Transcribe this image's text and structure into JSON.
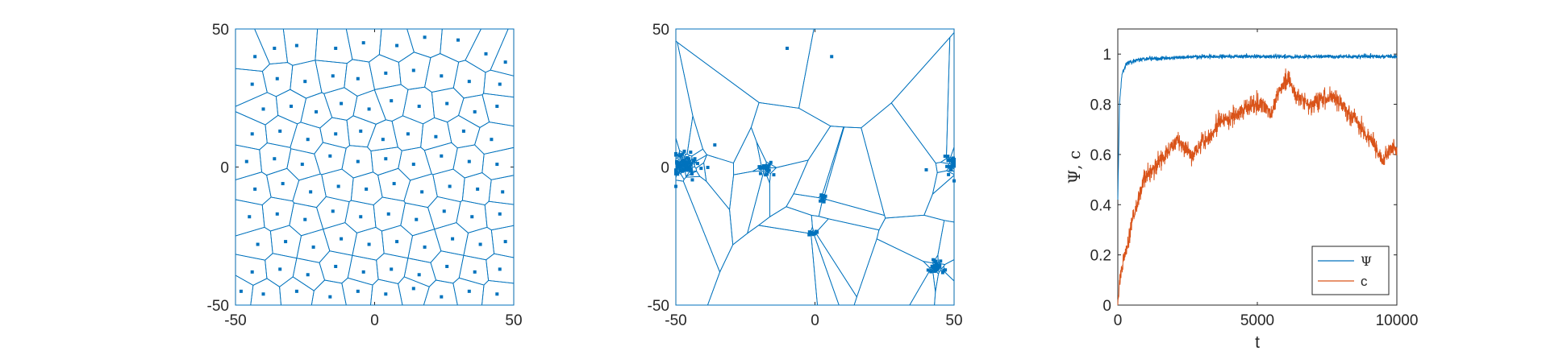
{
  "chart_data": [
    {
      "type": "scatter",
      "subtype": "voronoi",
      "title": "",
      "xlabel": "",
      "ylabel": "",
      "xlim": [
        -50,
        50
      ],
      "ylim": [
        -50,
        50
      ],
      "xticks": [
        "-50",
        "0",
        "50"
      ],
      "yticks": [
        "-50",
        "0",
        "50"
      ],
      "grid": false,
      "box": true,
      "color": "#0072BD",
      "seed": 1234,
      "points": [
        [
          -43,
          40
        ],
        [
          -36,
          43
        ],
        [
          -28,
          44
        ],
        [
          -14,
          43
        ],
        [
          -4,
          45
        ],
        [
          8,
          44
        ],
        [
          18,
          47
        ],
        [
          30,
          46
        ],
        [
          40,
          41
        ],
        [
          47,
          38
        ],
        [
          -44,
          30
        ],
        [
          -35,
          32
        ],
        [
          -25,
          31
        ],
        [
          -15,
          33
        ],
        [
          -6,
          32
        ],
        [
          4,
          34
        ],
        [
          14,
          35
        ],
        [
          24,
          33
        ],
        [
          34,
          31
        ],
        [
          45,
          30
        ],
        [
          -40,
          21
        ],
        [
          -30,
          22
        ],
        [
          -21,
          20
        ],
        [
          -12,
          23
        ],
        [
          -2,
          21
        ],
        [
          6,
          24
        ],
        [
          16,
          22
        ],
        [
          26,
          23
        ],
        [
          36,
          20
        ],
        [
          44,
          22
        ],
        [
          -44,
          12
        ],
        [
          -34,
          13
        ],
        [
          -24,
          10
        ],
        [
          -14,
          12
        ],
        [
          -5,
          13
        ],
        [
          3,
          10
        ],
        [
          12,
          12
        ],
        [
          22,
          11
        ],
        [
          32,
          13
        ],
        [
          42,
          10
        ],
        [
          -46,
          2
        ],
        [
          -36,
          3
        ],
        [
          -26,
          1
        ],
        [
          -16,
          4
        ],
        [
          -6,
          2
        ],
        [
          4,
          3
        ],
        [
          14,
          1
        ],
        [
          24,
          4
        ],
        [
          34,
          2
        ],
        [
          44,
          1
        ],
        [
          -43,
          -8
        ],
        [
          -33,
          -6
        ],
        [
          -23,
          -9
        ],
        [
          -13,
          -7
        ],
        [
          -3,
          -8
        ],
        [
          7,
          -6
        ],
        [
          17,
          -9
        ],
        [
          27,
          -7
        ],
        [
          37,
          -8
        ],
        [
          46,
          -9
        ],
        [
          -45,
          -18
        ],
        [
          -35,
          -17
        ],
        [
          -25,
          -19
        ],
        [
          -15,
          -16
        ],
        [
          -5,
          -18
        ],
        [
          5,
          -17
        ],
        [
          15,
          -19
        ],
        [
          25,
          -16
        ],
        [
          35,
          -18
        ],
        [
          45,
          -17
        ],
        [
          -42,
          -28
        ],
        [
          -32,
          -27
        ],
        [
          -22,
          -29
        ],
        [
          -12,
          -26
        ],
        [
          -2,
          -28
        ],
        [
          8,
          -27
        ],
        [
          18,
          -29
        ],
        [
          28,
          -26
        ],
        [
          38,
          -28
        ],
        [
          47,
          -27
        ],
        [
          -44,
          -38
        ],
        [
          -34,
          -37
        ],
        [
          -24,
          -39
        ],
        [
          -14,
          -36
        ],
        [
          -4,
          -38
        ],
        [
          6,
          -37
        ],
        [
          16,
          -39
        ],
        [
          26,
          -36
        ],
        [
          36,
          -38
        ],
        [
          45,
          -37
        ],
        [
          -40,
          -46
        ],
        [
          -28,
          -45
        ],
        [
          -16,
          -47
        ],
        [
          -6,
          -45
        ],
        [
          4,
          -46
        ],
        [
          14,
          -44
        ],
        [
          24,
          -47
        ],
        [
          34,
          -45
        ],
        [
          44,
          -46
        ],
        [
          -48,
          -45
        ]
      ]
    },
    {
      "type": "scatter",
      "subtype": "voronoi",
      "title": "",
      "xlabel": "",
      "ylabel": "",
      "xlim": [
        -50,
        50
      ],
      "ylim": [
        -50,
        50
      ],
      "xticks": [
        "-50",
        "0",
        "50"
      ],
      "yticks": [
        "-50",
        "0",
        "50"
      ],
      "grid": false,
      "box": true,
      "color": "#0072BD",
      "seed": 5678,
      "points": [
        [
          -10,
          43
        ],
        [
          6,
          40
        ],
        [
          -36,
          8
        ],
        [
          50,
          -5
        ],
        [
          40,
          -1
        ]
      ],
      "clusters": [
        {
          "center": [
            -47,
            1
          ],
          "count": 60,
          "spread": 2.4
        },
        {
          "center": [
            -18,
            0
          ],
          "count": 18,
          "spread": 1.3
        },
        {
          "center": [
            3,
            -11
          ],
          "count": 10,
          "spread": 0.9
        },
        {
          "center": [
            -1,
            -24
          ],
          "count": 8,
          "spread": 0.8
        },
        {
          "center": [
            49,
            1
          ],
          "count": 22,
          "spread": 1.3
        },
        {
          "center": [
            43,
            -36
          ],
          "count": 22,
          "spread": 1.6
        }
      ]
    },
    {
      "type": "line",
      "title": "",
      "xlabel": "t",
      "ylabel": "Ψ, c",
      "xlim": [
        0,
        10000
      ],
      "ylim": [
        0,
        1.1
      ],
      "xticks": [
        "0",
        "5000",
        "10000"
      ],
      "yticks": [
        "0",
        "0.2",
        "0.4",
        "0.6",
        "0.8",
        "1"
      ],
      "grid": false,
      "box": true,
      "legend_position": "bottom-right",
      "series": [
        {
          "name": "Ψ",
          "color": "#0072BD",
          "noise": 0.004,
          "points": [
            [
              0,
              0.42
            ],
            [
              60,
              0.8
            ],
            [
              150,
              0.92
            ],
            [
              300,
              0.96
            ],
            [
              600,
              0.975
            ],
            [
              1000,
              0.98
            ],
            [
              2000,
              0.985
            ],
            [
              3000,
              0.99
            ],
            [
              4000,
              0.99
            ],
            [
              5000,
              0.99
            ],
            [
              6000,
              0.99
            ],
            [
              7000,
              0.99
            ],
            [
              8000,
              0.99
            ],
            [
              9000,
              0.99
            ],
            [
              10000,
              0.99
            ]
          ]
        },
        {
          "name": "c",
          "color": "#D95319",
          "noise": 0.018,
          "points": [
            [
              0,
              0.0
            ],
            [
              100,
              0.12
            ],
            [
              200,
              0.18
            ],
            [
              350,
              0.23
            ],
            [
              500,
              0.33
            ],
            [
              700,
              0.41
            ],
            [
              900,
              0.49
            ],
            [
              1100,
              0.53
            ],
            [
              1300,
              0.55
            ],
            [
              1500,
              0.57
            ],
            [
              1800,
              0.61
            ],
            [
              2100,
              0.66
            ],
            [
              2400,
              0.63
            ],
            [
              2700,
              0.59
            ],
            [
              3000,
              0.65
            ],
            [
              3300,
              0.67
            ],
            [
              3600,
              0.73
            ],
            [
              4000,
              0.74
            ],
            [
              4400,
              0.77
            ],
            [
              4800,
              0.8
            ],
            [
              5200,
              0.8
            ],
            [
              5500,
              0.76
            ],
            [
              5800,
              0.86
            ],
            [
              6100,
              0.9
            ],
            [
              6400,
              0.84
            ],
            [
              6800,
              0.79
            ],
            [
              7200,
              0.82
            ],
            [
              7600,
              0.83
            ],
            [
              8000,
              0.8
            ],
            [
              8400,
              0.76
            ],
            [
              8800,
              0.69
            ],
            [
              9200,
              0.64
            ],
            [
              9500,
              0.57
            ],
            [
              9800,
              0.63
            ],
            [
              10000,
              0.61
            ]
          ]
        }
      ]
    }
  ]
}
